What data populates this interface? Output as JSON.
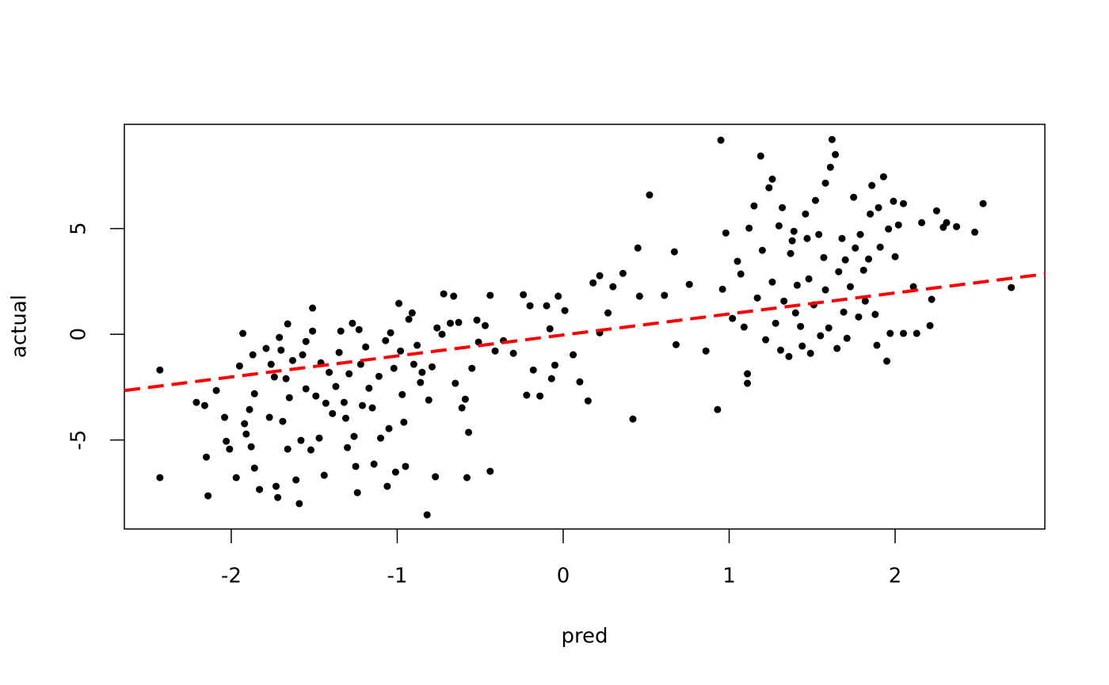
{
  "chart_data": {
    "type": "scatter",
    "x_label": "pred",
    "y_label": "actual",
    "xlim": [
      -2.644,
      2.902
    ],
    "ylim": [
      -9.21,
      9.93
    ],
    "xticks": [
      -2,
      -1,
      0,
      1,
      2
    ],
    "yticks": [
      -5,
      0,
      5
    ],
    "series": [
      {
        "color": "#000000",
        "x": [
          -2.43,
          -2.43,
          -2.21,
          -2.16,
          -2.15,
          -2.14,
          -2.09,
          -2.04,
          -2.03,
          -2.01,
          -1.97,
          -1.95,
          -1.93,
          -1.92,
          -1.91,
          -1.89,
          -1.88,
          -1.87,
          -1.86,
          -1.86,
          -1.83,
          -1.79,
          -1.77,
          -1.76,
          -1.74,
          -1.73,
          -1.72,
          -1.71,
          -1.7,
          -1.69,
          -1.67,
          -1.66,
          -1.66,
          -1.65,
          -1.63,
          -1.61,
          -1.59,
          -1.58,
          -1.57,
          -1.55,
          -1.55,
          -1.52,
          -1.51,
          -1.51,
          -1.49,
          -1.47,
          -1.46,
          -1.44,
          -1.43,
          -1.41,
          -1.39,
          -1.37,
          -1.35,
          -1.34,
          -1.32,
          -1.31,
          -1.3,
          -1.29,
          -1.27,
          -1.26,
          -1.25,
          -1.24,
          -1.23,
          -1.22,
          -1.21,
          -1.19,
          -1.17,
          -1.15,
          -1.14,
          -1.11,
          -1.1,
          -1.07,
          -1.06,
          -1.05,
          -1.04,
          -1.02,
          -1.01,
          -0.99,
          -0.98,
          -0.97,
          -0.96,
          -0.95,
          -0.93,
          -0.91,
          -0.9,
          -0.88,
          -0.86,
          -0.85,
          -0.82,
          -0.81,
          -0.79,
          -0.77,
          -0.76,
          -0.73,
          -0.72,
          -0.68,
          -0.66,
          -0.65,
          -0.63,
          -0.61,
          -0.59,
          -0.58,
          -0.57,
          -0.55,
          -0.52,
          -0.51,
          -0.47,
          -0.44,
          -0.44,
          -0.41,
          -0.36,
          -0.3,
          -0.24,
          -0.22,
          -0.2,
          -0.18,
          -0.14,
          -0.1,
          -0.08,
          -0.07,
          -0.05,
          -0.03,
          0.01,
          0.06,
          0.1,
          0.15,
          0.18,
          0.22,
          0.22,
          0.27,
          0.3,
          0.36,
          0.42,
          0.45,
          0.46,
          0.52,
          0.61,
          0.67,
          0.68,
          0.76,
          0.86,
          0.93,
          0.95,
          0.96,
          0.98,
          1.02,
          1.05,
          1.07,
          1.09,
          1.11,
          1.11,
          1.12,
          1.15,
          1.17,
          1.19,
          1.2,
          1.22,
          1.24,
          1.26,
          1.26,
          1.28,
          1.3,
          1.31,
          1.32,
          1.33,
          1.36,
          1.37,
          1.38,
          1.39,
          1.4,
          1.41,
          1.43,
          1.44,
          1.46,
          1.47,
          1.48,
          1.49,
          1.51,
          1.52,
          1.54,
          1.55,
          1.57,
          1.58,
          1.58,
          1.6,
          1.61,
          1.62,
          1.64,
          1.65,
          1.66,
          1.68,
          1.69,
          1.7,
          1.71,
          1.73,
          1.75,
          1.76,
          1.78,
          1.79,
          1.81,
          1.82,
          1.84,
          1.85,
          1.86,
          1.88,
          1.89,
          1.9,
          1.91,
          1.93,
          1.95,
          1.96,
          1.97,
          1.99,
          2.0,
          2.02,
          2.05,
          2.05,
          2.11,
          2.13,
          2.16,
          2.21,
          2.22,
          2.25,
          2.29,
          2.31,
          2.37,
          2.48,
          2.53,
          2.7
        ],
        "y": [
          -1.69,
          -6.78,
          -3.22,
          -3.37,
          -5.81,
          -7.64,
          -2.66,
          -3.93,
          -5.06,
          -5.43,
          -6.78,
          -1.5,
          0.04,
          -4.23,
          -4.72,
          -3.56,
          -5.32,
          -0.97,
          -2.81,
          -6.33,
          -7.34,
          -0.67,
          -3.93,
          -1.42,
          -2.02,
          -7.19,
          -7.72,
          -0.15,
          -0.75,
          -4.12,
          -2.1,
          0.49,
          -5.43,
          -3.0,
          -1.24,
          -6.89,
          -8.01,
          -5.02,
          -0.97,
          -2.58,
          -0.34,
          -5.47,
          0.15,
          1.24,
          -2.92,
          -4.91,
          -1.35,
          -6.67,
          -3.26,
          -1.8,
          -3.75,
          -2.47,
          -0.86,
          0.15,
          -3.22,
          -3.97,
          -5.36,
          -1.87,
          0.52,
          -4.83,
          -6.25,
          -7.49,
          0.22,
          -1.42,
          -3.37,
          -0.6,
          -2.55,
          -3.48,
          -6.14,
          -1.99,
          -4.91,
          -0.3,
          -7.19,
          -4.46,
          0.07,
          -1.61,
          -6.52,
          1.46,
          -0.79,
          -2.85,
          -4.16,
          -6.25,
          0.71,
          1.01,
          -1.42,
          -0.52,
          -2.28,
          -1.8,
          -8.54,
          -3.11,
          -1.54,
          -6.74,
          0.3,
          0.0,
          1.91,
          0.52,
          1.8,
          -2.32,
          0.56,
          -3.48,
          -3.07,
          -6.78,
          -4.64,
          -1.61,
          0.67,
          -0.37,
          0.41,
          1.84,
          -6.48,
          -0.79,
          -0.3,
          -0.9,
          1.87,
          -2.88,
          1.35,
          -1.69,
          -2.92,
          1.35,
          0.26,
          -2.1,
          -1.46,
          1.8,
          1.12,
          -0.97,
          -2.25,
          -3.15,
          2.43,
          2.77,
          0.07,
          1.01,
          2.25,
          2.88,
          -4.01,
          4.08,
          1.8,
          6.59,
          1.84,
          3.9,
          -0.49,
          2.36,
          -0.79,
          -3.56,
          9.18,
          2.13,
          4.79,
          0.75,
          3.45,
          2.85,
          0.34,
          -2.32,
          -1.87,
          5.02,
          6.07,
          1.72,
          8.43,
          3.97,
          -0.26,
          6.93,
          7.34,
          2.47,
          0.52,
          5.13,
          -0.75,
          5.99,
          1.57,
          -1.05,
          3.82,
          4.42,
          4.87,
          1.01,
          2.32,
          0.37,
          -0.56,
          5.69,
          4.53,
          2.62,
          -0.9,
          1.39,
          6.33,
          4.72,
          -0.07,
          3.63,
          2.1,
          7.15,
          0.3,
          7.9,
          9.21,
          8.5,
          -0.67,
          2.96,
          4.53,
          1.05,
          3.52,
          -0.19,
          2.25,
          6.48,
          4.08,
          0.82,
          4.72,
          3.03,
          1.57,
          3.56,
          5.69,
          7.04,
          0.94,
          -0.52,
          5.99,
          4.12,
          7.45,
          -1.27,
          4.98,
          0.04,
          6.29,
          3.67,
          5.17,
          0.04,
          6.18,
          2.25,
          0.04,
          5.28,
          0.41,
          1.65,
          5.84,
          5.06,
          5.28,
          5.09,
          4.83,
          6.18,
          2.21
        ]
      }
    ],
    "fit": {
      "color": "#ff0000",
      "dashed": true,
      "x": [
        -2.644,
        2.902
      ],
      "y": [
        -2.66,
        2.85
      ]
    }
  }
}
